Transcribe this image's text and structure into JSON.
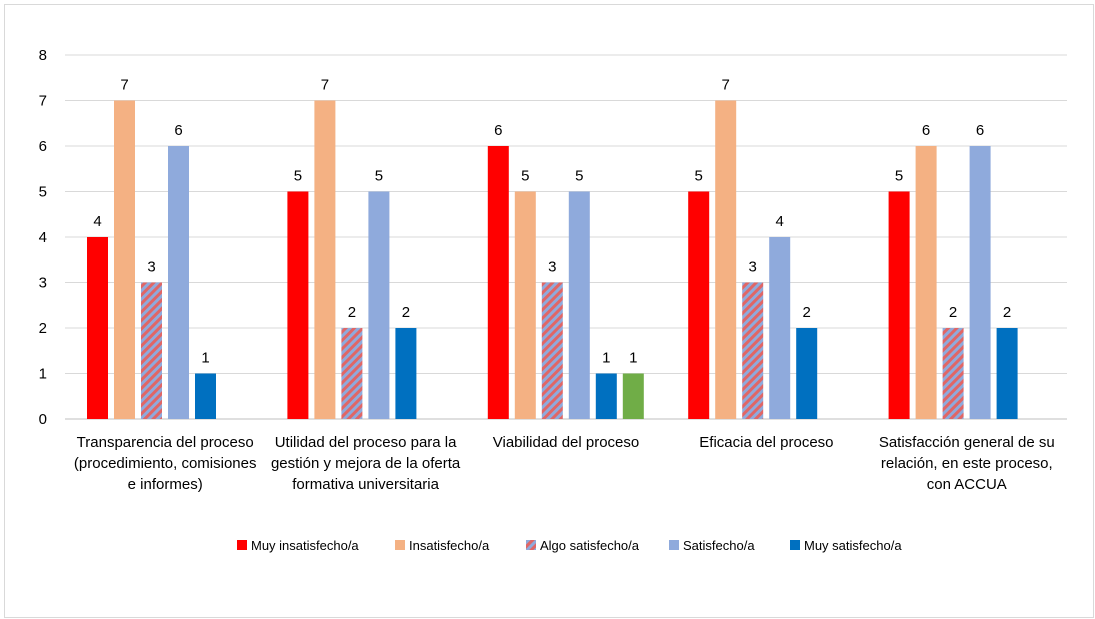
{
  "chart_data": {
    "type": "bar",
    "title": "",
    "xlabel": "",
    "ylabel": "",
    "ylim": [
      0,
      8
    ],
    "yticks": [
      0,
      1,
      2,
      3,
      4,
      5,
      6,
      7,
      8
    ],
    "grid": true,
    "legend_position": "bottom",
    "categories": [
      [
        "Transparencia del proceso",
        "(procedimiento, comisiones",
        "e informes)"
      ],
      [
        "Utilidad del proceso para la",
        "gestión y mejora de la oferta",
        "formativa universitaria"
      ],
      [
        "Viabilidad del proceso"
      ],
      [
        "Eficacia del proceso"
      ],
      [
        "Satisfacción general de su",
        "relación, en este proceso,",
        "con ACCUA"
      ]
    ],
    "series": [
      {
        "name": "Muy insatisfecho/a",
        "color": "#ff0000",
        "pattern": "solid",
        "values": [
          4,
          5,
          6,
          5,
          5
        ]
      },
      {
        "name": "Insatisfecho/a",
        "color": "#f4b183",
        "pattern": "solid",
        "values": [
          7,
          7,
          5,
          7,
          6
        ]
      },
      {
        "name": "Algo satisfecho/a",
        "color": "#8faadc",
        "pattern": "hatch",
        "hatch_color": "#e06666",
        "values": [
          3,
          2,
          3,
          3,
          2
        ]
      },
      {
        "name": "Satisfecho/a",
        "color": "#8faadc",
        "pattern": "solid",
        "values": [
          6,
          5,
          5,
          4,
          6
        ]
      },
      {
        "name": "Muy satisfecho/a",
        "color": "#0070c0",
        "pattern": "solid",
        "values": [
          1,
          2,
          1,
          2,
          2
        ]
      },
      {
        "color": "#70ad47",
        "pattern": "solid",
        "values": [
          null,
          null,
          1,
          null,
          null
        ]
      }
    ]
  }
}
